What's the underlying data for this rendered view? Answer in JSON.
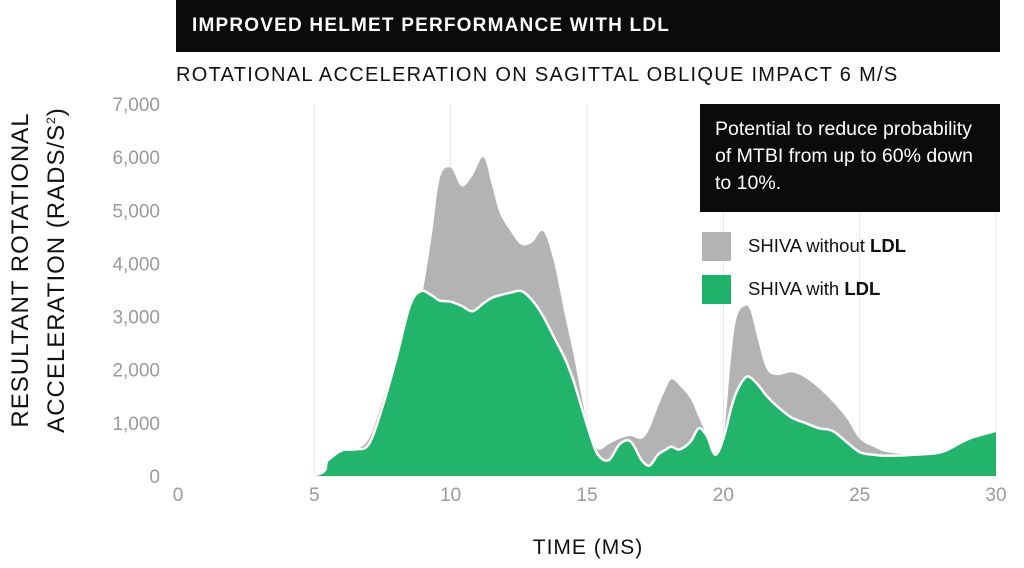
{
  "banner": "IMPROVED HELMET PERFORMANCE WITH LDL",
  "callout": "Potential to reduce probability of MTBI from up to 60% down to 10%.",
  "colors": {
    "without": "#b3b3b4",
    "with": "#1db267",
    "with_light": "#39c67f"
  },
  "chart_data": {
    "type": "area",
    "title": "ROTATIONAL ACCELERATION ON SAGITTAL OBLIQUE IMPACT 6 M/S",
    "xlabel": "TIME (MS)",
    "ylabel": "RESULTANT ROTATIONAL ACCELERATION (RADS/S²)",
    "ylabel_line1": "RESULTANT ROTATIONAL",
    "ylabel_line2_prefix": "ACCELERATION (RADS/S",
    "ylabel_line2_sup": "2",
    "ylabel_line2_suffix": ")",
    "xlim": [
      0,
      30
    ],
    "ylim": [
      0,
      7000
    ],
    "x_ticks": [
      "0",
      "5",
      "10",
      "15",
      "20",
      "25",
      "30"
    ],
    "y_ticks": [
      "0",
      "1,000",
      "2,000",
      "3,000",
      "4,000",
      "5,000",
      "6,000",
      "7,000"
    ],
    "grid": true,
    "legend_position": "right",
    "legend": [
      {
        "prefix": "SHIVA without ",
        "bold": "LDL"
      },
      {
        "prefix": "SHIVA with ",
        "bold": "LDL"
      }
    ],
    "series": [
      {
        "name": "SHIVA without LDL",
        "x": [
          0,
          4.8,
          5.5,
          6,
          6.5,
          7,
          7.5,
          8,
          8.5,
          8.9,
          9.3,
          9.6,
          10,
          10.4,
          10.8,
          11.2,
          11.5,
          11.8,
          12.2,
          12.6,
          13,
          13.4,
          13.8,
          14.2,
          14.5,
          14.8,
          15.1,
          15.4,
          15.8,
          16.2,
          16.6,
          17,
          17.3,
          17.6,
          17.9,
          18.1,
          18.4,
          18.8,
          19.1,
          19.4,
          19.7,
          20,
          20.3,
          20.5,
          20.8,
          21.0,
          21.3,
          21.6,
          22,
          22.5,
          23,
          23.5,
          24,
          24.5,
          25,
          25.5,
          26,
          27,
          28,
          29,
          30
        ],
        "values": [
          0,
          0,
          300,
          480,
          500,
          700,
          1400,
          2200,
          2900,
          3300,
          4500,
          5600,
          5800,
          5450,
          5650,
          6000,
          5500,
          4950,
          4600,
          4350,
          4400,
          4600,
          4000,
          3000,
          2300,
          1500,
          800,
          500,
          600,
          700,
          750,
          700,
          900,
          1300,
          1650,
          1820,
          1700,
          1450,
          1100,
          750,
          350,
          700,
          2300,
          3000,
          3200,
          3100,
          2500,
          2000,
          1900,
          1950,
          1850,
          1650,
          1400,
          1100,
          700,
          550,
          450,
          400,
          450,
          450,
          400
        ]
      },
      {
        "name": "SHIVA with LDL",
        "x": [
          0,
          4.8,
          5.5,
          6,
          6.5,
          7,
          7.5,
          8,
          8.5,
          8.9,
          9.3,
          9.6,
          10,
          10.4,
          10.8,
          11.2,
          11.5,
          11.8,
          12.2,
          12.6,
          13,
          13.4,
          13.8,
          14.2,
          14.5,
          14.8,
          15.1,
          15.4,
          15.8,
          16.2,
          16.6,
          17,
          17.3,
          17.6,
          17.9,
          18.1,
          18.4,
          18.8,
          19.1,
          19.4,
          19.7,
          20,
          20.3,
          20.5,
          20.8,
          21.0,
          21.3,
          21.6,
          22,
          22.5,
          23,
          23.5,
          24,
          24.5,
          25,
          25.5,
          26,
          27,
          28,
          29,
          30
        ],
        "values": [
          0,
          0,
          300,
          480,
          500,
          600,
          1300,
          2200,
          3200,
          3480,
          3400,
          3300,
          3280,
          3200,
          3100,
          3250,
          3350,
          3400,
          3450,
          3480,
          3300,
          3000,
          2600,
          2200,
          1800,
          1300,
          800,
          400,
          300,
          600,
          650,
          300,
          200,
          400,
          500,
          550,
          500,
          650,
          900,
          750,
          400,
          700,
          1300,
          1600,
          1850,
          1850,
          1700,
          1500,
          1300,
          1100,
          1000,
          900,
          850,
          650,
          450,
          400,
          380,
          400,
          450,
          700,
          850
        ]
      }
    ]
  }
}
